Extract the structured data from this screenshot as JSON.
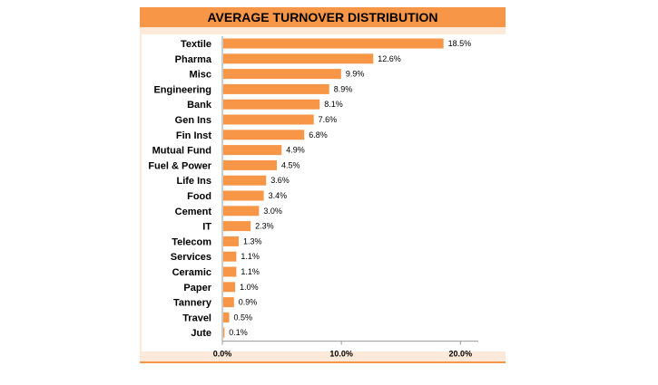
{
  "chart_data": {
    "type": "bar",
    "orientation": "horizontal",
    "title": "AVERAGE TURNOVER DISTRIBUTION",
    "categories": [
      "Textile",
      "Pharma",
      "Misc",
      "Engineering",
      "Bank",
      "Gen Ins",
      "Fin Inst",
      "Mutual Fund",
      "Fuel & Power",
      "Life Ins",
      "Food",
      "Cement",
      "IT",
      "Telecom",
      "Services",
      "Ceramic",
      "Paper",
      "Tannery",
      "Travel",
      "Jute"
    ],
    "values": [
      18.5,
      12.6,
      9.9,
      8.9,
      8.1,
      7.6,
      6.8,
      4.9,
      4.5,
      3.6,
      3.4,
      3.0,
      2.3,
      1.3,
      1.1,
      1.1,
      1.0,
      0.9,
      0.5,
      0.1
    ],
    "value_labels": [
      "18.5%",
      "12.6%",
      "9.9%",
      "8.9%",
      "8.1%",
      "7.6%",
      "6.8%",
      "4.9%",
      "4.5%",
      "3.6%",
      "3.4%",
      "3.0%",
      "2.3%",
      "1.3%",
      "1.1%",
      "1.1%",
      "1.0%",
      "0.9%",
      "0.5%",
      "0.1%"
    ],
    "xticks": [
      0,
      10,
      20
    ],
    "xtick_labels": [
      "0.0%",
      "10.0%",
      "20.0%"
    ],
    "xlim": [
      0,
      21.5
    ],
    "xlabel": "",
    "ylabel": "",
    "bar_color": "#f79646",
    "grid": false,
    "legend": "none"
  },
  "colors": {
    "accent": "#f79646",
    "frame_background": "#fde9d9",
    "plot_background": "#ffffff"
  }
}
